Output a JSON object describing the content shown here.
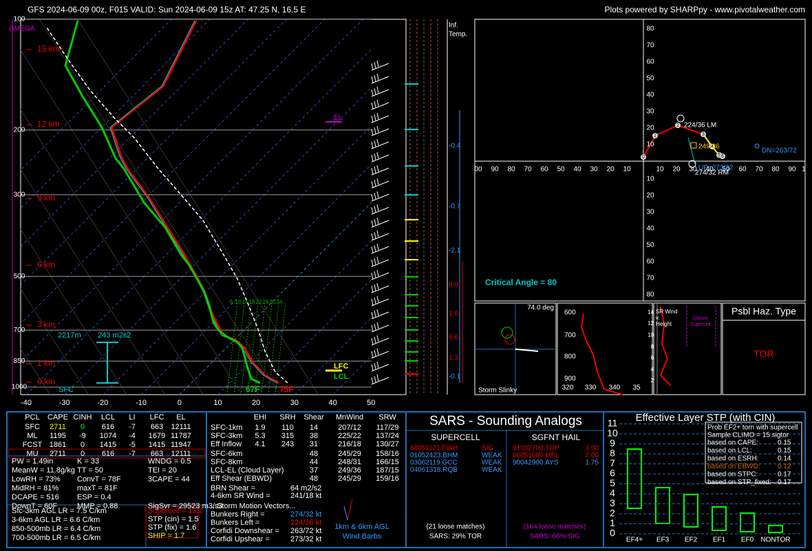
{
  "header": {
    "title": "GFS 2024-06-09 00z, F015  VALID: Sun 2024-06-09 15z  AT: 47.25 N, 16.5 E",
    "credit": "Plots powered by SHARPpy - www.pivotalweather.com"
  },
  "skewt": {
    "omega": "OMEGA",
    "pressures": [
      "100",
      "200",
      "300",
      "500",
      "700",
      "850",
      "1000"
    ],
    "heights": [
      "15 km",
      "12 km",
      "9 km",
      "6 km",
      "3 km",
      "1 km",
      "0 km"
    ],
    "temps": [
      "-40",
      "-30",
      "-20",
      "-10",
      "0",
      "10",
      "20",
      "30",
      "40",
      "50"
    ],
    "mixing": [
      "6",
      "10",
      "14",
      "18",
      "22",
      "26",
      "30",
      "34"
    ],
    "el": "EL",
    "lfc": "LFC",
    "lcl": "LCL",
    "sfc": "SFC",
    "eff_base": "2217m",
    "eff_srh": "243 m2s2",
    "sfc_td": "67F",
    "sfc_t": "75F"
  },
  "inferred": {
    "label": [
      "Inf.",
      "Temp."
    ],
    "values": [
      "-0.4",
      "-0.7",
      "-2.1",
      "0.9",
      "1.6",
      "5.6",
      "1.3",
      "-0.1"
    ]
  },
  "hodograph": {
    "rings": [
      "10",
      "20",
      "30",
      "40",
      "50",
      "60",
      "70",
      "80",
      "90"
    ],
    "edge_left": "00",
    "edge_right": "1",
    "points": [
      "0",
      "1",
      "2",
      "3",
      "4",
      "5",
      "6"
    ],
    "lm": "224/36 LM",
    "rm": "274/32 RM",
    "mean": "249/36",
    "up": "UP=273/32",
    "dn": "DN=263/72",
    "critical": "Critical Angle = 80"
  },
  "slinky": {
    "angle": "74.0 deg",
    "label": "Storm Slinky"
  },
  "thetae": {
    "p": [
      "600",
      "700",
      "800",
      "900"
    ],
    "t": [
      "320",
      "330",
      "340",
      "35"
    ]
  },
  "srwind": {
    "h": [
      "14",
      "12",
      "10",
      "8",
      "6",
      "4",
      "2"
    ],
    "title": [
      "SR Wind",
      "v.",
      "Height"
    ],
    "note": [
      "Classic",
      "Supercell"
    ]
  },
  "hazard": {
    "title": "Psbl Haz. Type",
    "type": "TOR"
  },
  "parcels": {
    "header": [
      "PCL",
      "CAPE",
      "CINH",
      "LCL",
      "LI",
      "LFC",
      "EL"
    ],
    "rows": [
      [
        "SFC",
        "2711",
        "0",
        "616",
        "-7",
        "663",
        "12111"
      ],
      [
        "ML",
        "1195",
        "-9",
        "1074",
        "-4",
        "1679",
        "11787"
      ],
      [
        "FCST",
        "1861",
        "0",
        "1415",
        "-5",
        "1415",
        "11947"
      ],
      [
        "MU",
        "2711",
        "0",
        "616",
        "-7",
        "663",
        "12111"
      ]
    ]
  },
  "indices": [
    [
      "PW = 1.49in",
      "K = 33",
      "WNDG = 0.5"
    ],
    [
      "MeanW = 11.8g/kg",
      "TT = 50",
      "TEI = 20"
    ],
    [
      "LowRH = 73%",
      "ConvT = 78F",
      "3CAPE = 44"
    ],
    [
      "MidRH = 81%",
      "maxT = 81F",
      null
    ],
    [
      "DCAPE = 516",
      "ESP = 0.4",
      null
    ],
    [
      "DownT = 60F",
      "MMP = 0.88",
      "SigSvr = 29523 m3/s3"
    ]
  ],
  "lapse": [
    "Sfc-3km AGL LR = 7.5 C/km",
    "3-6km AGL LR = 6.6 C/km",
    "850-500mb LR = 6.4 C/km",
    "700-500mb LR = 6.5 C/km"
  ],
  "composites": [
    "Supercell = 13.2",
    "STP (cin) = 1.5",
    "STP (fix) = 1.6",
    "SHIP = 1.7"
  ],
  "kinematics": {
    "header": [
      "EHI",
      "SRH",
      "Shear",
      "MnWind",
      "SRW"
    ],
    "rows": [
      [
        "SFC-1km",
        "1.9",
        "110",
        "14",
        "207/12",
        "117/29"
      ],
      [
        "SFC-3km",
        "5.3",
        "315",
        "38",
        "225/22",
        "137/24"
      ],
      [
        "Eff Inflow",
        "4.1",
        "243",
        "31",
        "216/18",
        "130/27"
      ],
      [
        "SFC-6km",
        null,
        null,
        "48",
        "245/29",
        "158/16"
      ],
      [
        "SFC-8km",
        null,
        null,
        "44",
        "248/31",
        "166/15"
      ],
      [
        "LCL-EL (Cloud Layer)",
        null,
        null,
        "37",
        "249/36",
        "187/15"
      ],
      [
        "Eff Shear (EBWD)",
        null,
        null,
        "48",
        "245/29",
        "159/16"
      ]
    ],
    "extra": [
      [
        "BRN Shear =",
        "64 m2/s2"
      ],
      [
        "4-6km SR Wind =",
        "241/18 kt"
      ]
    ],
    "storm_title": "...Storm Motion Vectors...",
    "storm": [
      [
        "Bunkers Right =",
        "274/32 kt"
      ],
      [
        "Bunkers Left =",
        "224/36 kt"
      ],
      [
        "Corfidi Downshear =",
        "263/72 kt"
      ],
      [
        "Corfidi Upshear =",
        "273/32 kt"
      ]
    ],
    "barbs": [
      "1km & 6km AGL",
      "Wind Barbs"
    ]
  },
  "sars": {
    "title": "SARS - Sounding Analogs",
    "supercell": "SUPERCELL",
    "hail": "SGFNT HAIL",
    "sup_rows": [
      [
        "58051121.FWH",
        "SIG"
      ],
      [
        "01052423.BHM",
        "WEAK"
      ],
      [
        "03062119.GCC",
        "WEAK"
      ],
      [
        "04061318.RQB",
        "WEAK"
      ]
    ],
    "hail_rows": [
      [
        "91032700.TOP",
        "3.00"
      ],
      [
        "06051600.MFL",
        "2.00"
      ],
      [
        "90042900.AYS",
        "1.75"
      ]
    ],
    "sup_matches": "(21 loose matches)",
    "sup_result": "SARS: 29% TOR",
    "hail_matches": "(164 loose matches)",
    "hail_result": "SARS: 66% SIG"
  },
  "stp": {
    "title": "Effective Layer STP (with CIN)",
    "yticks": [
      "0",
      "1",
      "2",
      "3",
      "4",
      "5",
      "6",
      "7",
      "8",
      "9",
      "10",
      "11"
    ],
    "cats": [
      "EF4+",
      "EF3",
      "EF2",
      "EF1",
      "EF0",
      "NONTOR"
    ],
    "legend_title": [
      "Prob EF2+ torn with supercell",
      "Sample CLIMO = 15 sigtor"
    ],
    "legend": [
      [
        "based on CAPE:",
        "0.15"
      ],
      [
        "based on LCL:",
        "0.15"
      ],
      [
        "based on ESRH:",
        "0.14"
      ],
      [
        "based on EBWD:",
        "0.12"
      ],
      [
        "based on STPC:",
        "0.17"
      ],
      [
        "based on STP_fixed:",
        "0.17"
      ]
    ]
  }
}
